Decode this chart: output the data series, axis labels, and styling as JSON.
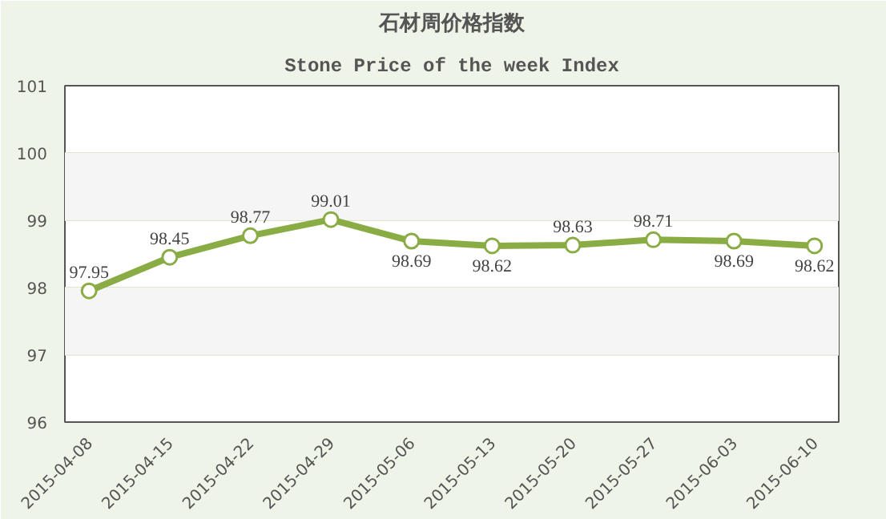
{
  "chart_data": {
    "type": "line",
    "title": "石材周价格指数",
    "subtitle": "Stone Price of the week Index",
    "categories": [
      "2015-04-08",
      "2015-04-15",
      "2015-04-22",
      "2015-04-29",
      "2015-05-06",
      "2015-05-13",
      "2015-05-20",
      "2015-05-27",
      "2015-06-03",
      "2015-06-10"
    ],
    "series": [
      {
        "color": "#8aac45",
        "values": [
          97.95,
          98.45,
          98.77,
          99.01,
          98.69,
          98.62,
          98.63,
          98.71,
          98.69,
          98.62
        ]
      }
    ],
    "ylim": [
      96,
      101
    ],
    "yticks": [
      96,
      97,
      98,
      99,
      100,
      101
    ],
    "grid": "y",
    "marker": "circle",
    "line_style": "solid",
    "data_labels": true,
    "bands": [
      {
        "axis": "y",
        "from": 97,
        "to": 98,
        "color": "#f5f5f5"
      },
      {
        "axis": "y",
        "from": 99,
        "to": 100,
        "color": "#f5f5f5"
      }
    ]
  }
}
